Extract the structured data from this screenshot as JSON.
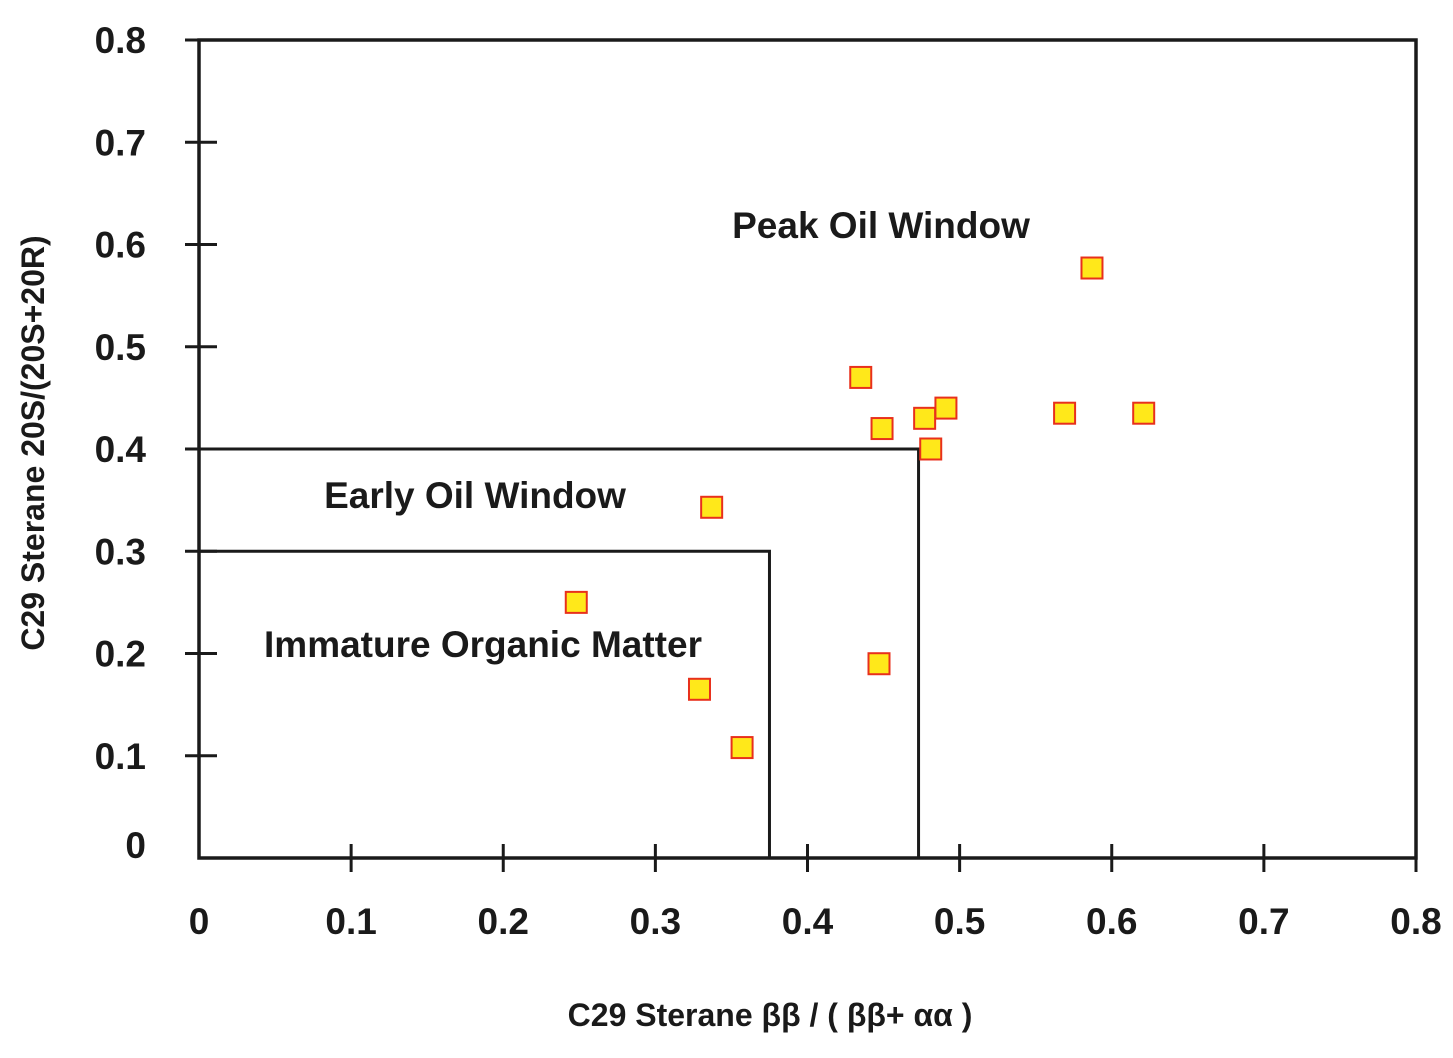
{
  "chart_data": {
    "type": "scatter",
    "xlabel": "C29 Sterane ββ / ( ββ+ αα )",
    "ylabel": "C29 Sterane 20S/(20S+20R)",
    "xlim": [
      0,
      0.8
    ],
    "ylim": [
      0,
      0.8
    ],
    "xticks": [
      "0",
      "0.1",
      "0.2",
      "0.3",
      "0.4",
      "0.5",
      "0.6",
      "0.7",
      "0.8"
    ],
    "yticks": [
      "0",
      "0.1",
      "0.2",
      "0.3",
      "0.4",
      "0.5",
      "0.6",
      "0.7",
      "0.8"
    ],
    "grid": false,
    "regions": [
      {
        "label": "Immature Organic Matter",
        "x_max": 0.375,
        "y_max": 0.3
      },
      {
        "label": "Early Oil Window",
        "x_max": 0.473,
        "y_max": 0.4
      },
      {
        "label": "Peak Oil Window"
      }
    ],
    "points": [
      {
        "x": 0.248,
        "y": 0.25
      },
      {
        "x": 0.329,
        "y": 0.165
      },
      {
        "x": 0.337,
        "y": 0.343
      },
      {
        "x": 0.357,
        "y": 0.108
      },
      {
        "x": 0.435,
        "y": 0.47
      },
      {
        "x": 0.447,
        "y": 0.19
      },
      {
        "x": 0.449,
        "y": 0.42
      },
      {
        "x": 0.477,
        "y": 0.43
      },
      {
        "x": 0.481,
        "y": 0.4
      },
      {
        "x": 0.491,
        "y": 0.44
      },
      {
        "x": 0.569,
        "y": 0.435
      },
      {
        "x": 0.587,
        "y": 0.577
      },
      {
        "x": 0.621,
        "y": 0.435
      }
    ],
    "marker": {
      "shape": "square",
      "fill": "#ffe81a",
      "stroke": "#e8301c"
    }
  }
}
